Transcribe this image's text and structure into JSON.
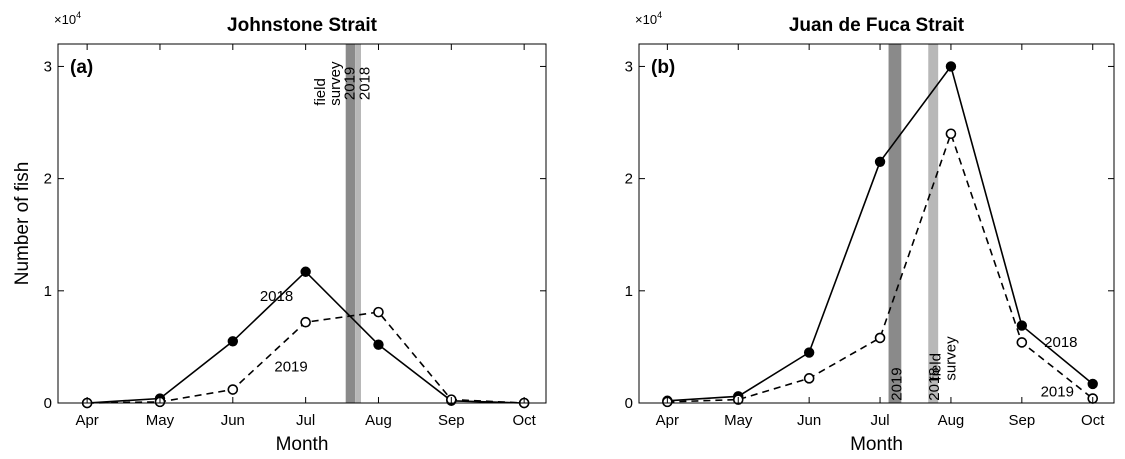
{
  "chart_data": [
    {
      "type": "line",
      "panel_label": "(a)",
      "title": "Johnstone Strait",
      "xlabel": "Month",
      "ylabel": "Number of fish",
      "multiplier": {
        "base": "×10",
        "exp": "4"
      },
      "categories": [
        "Apr",
        "May",
        "Jun",
        "Jul",
        "Aug",
        "Sep",
        "Oct"
      ],
      "xlim": [
        0.6,
        7.3
      ],
      "ylim": [
        0,
        3.2
      ],
      "yticks": [
        0,
        1,
        2,
        3
      ],
      "grid": false,
      "series": [
        {
          "name": "2018",
          "style": "solid",
          "marker": "filled",
          "x": [
            1,
            2,
            3,
            4,
            5,
            6,
            7
          ],
          "values": [
            0.0,
            0.04,
            0.55,
            1.17,
            0.52,
            0.02,
            0.0
          ],
          "label_at": [
            3.6,
            0.91
          ]
        },
        {
          "name": "2019",
          "style": "dashed",
          "marker": "open",
          "x": [
            1,
            2,
            3,
            4,
            5,
            6,
            7
          ],
          "values": [
            0.0,
            0.01,
            0.12,
            0.72,
            0.81,
            0.03,
            0.0
          ],
          "label_at": [
            3.8,
            0.28
          ]
        }
      ],
      "bands": [
        {
          "x0": 4.55,
          "x1": 4.68,
          "color": "#8a8a8a"
        },
        {
          "x0": 4.68,
          "x1": 4.76,
          "color": "#b8b8b8"
        }
      ],
      "band_labels": [
        {
          "lines": [
            "field",
            "survey"
          ],
          "at": [
            4.36,
            2.65
          ]
        },
        {
          "lines": [
            "2019"
          ],
          "at": [
            4.6,
            2.7
          ]
        },
        {
          "lines": [
            "2018"
          ],
          "at": [
            4.81,
            2.7
          ]
        }
      ]
    },
    {
      "type": "line",
      "panel_label": "(b)",
      "title": "Juan de Fuca Strait",
      "xlabel": "Month",
      "ylabel": "",
      "multiplier": {
        "base": "×10",
        "exp": "4"
      },
      "categories": [
        "Apr",
        "May",
        "Jun",
        "Jul",
        "Aug",
        "Sep",
        "Oct"
      ],
      "xlim": [
        0.6,
        7.3
      ],
      "ylim": [
        0,
        3.2
      ],
      "yticks": [
        0,
        1,
        2,
        3
      ],
      "grid": false,
      "series": [
        {
          "name": "2018",
          "style": "solid",
          "marker": "filled",
          "x": [
            1,
            2,
            3,
            4,
            5,
            6,
            7
          ],
          "values": [
            0.02,
            0.06,
            0.45,
            2.15,
            3.0,
            0.69,
            0.17
          ],
          "label_at": [
            6.55,
            0.5
          ]
        },
        {
          "name": "2019",
          "style": "dashed",
          "marker": "open",
          "x": [
            1,
            2,
            3,
            4,
            5,
            6,
            7
          ],
          "values": [
            0.01,
            0.03,
            0.22,
            0.58,
            2.4,
            0.54,
            0.04
          ],
          "label_at": [
            6.5,
            0.06
          ]
        }
      ],
      "bands": [
        {
          "x0": 4.12,
          "x1": 4.3,
          "color": "#8a8a8a"
        },
        {
          "x0": 4.68,
          "x1": 4.82,
          "color": "#b8b8b8"
        }
      ],
      "band_labels": [
        {
          "lines": [
            "2019"
          ],
          "at": [
            4.23,
            0.02
          ]
        },
        {
          "lines": [
            "2018"
          ],
          "at": [
            4.76,
            0.02
          ]
        },
        {
          "lines": [
            "field",
            "survey"
          ],
          "at": [
            4.95,
            0.2
          ]
        }
      ]
    }
  ]
}
